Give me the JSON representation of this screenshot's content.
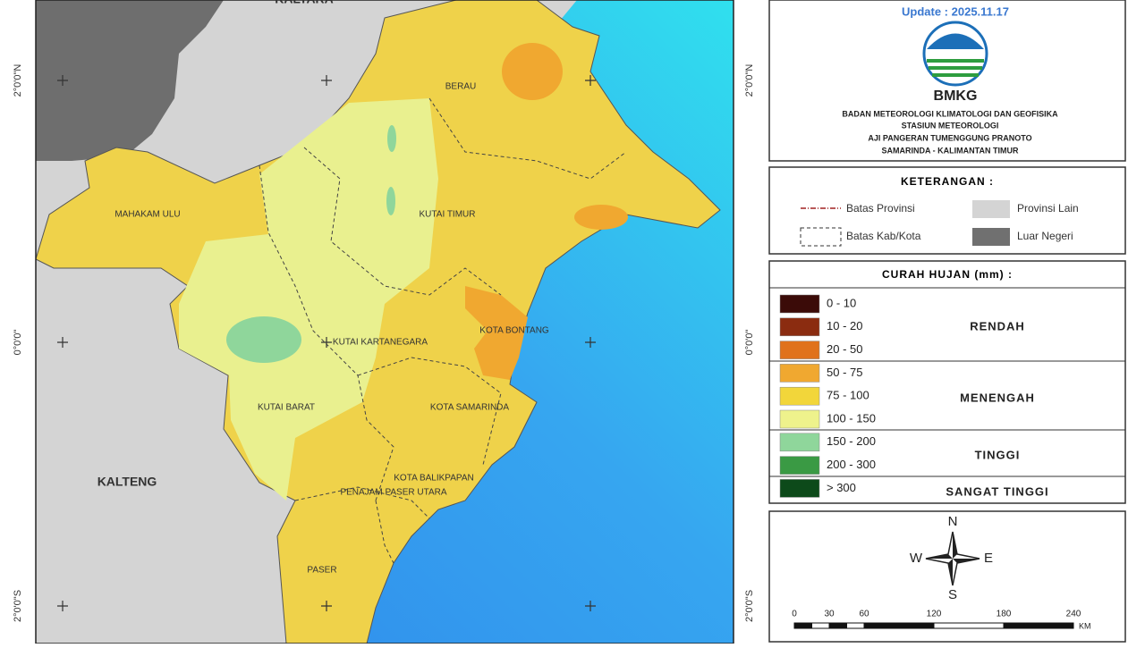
{
  "header": {
    "update": "Update : 2025.11.17",
    "logo_text": "BMKG",
    "agency": [
      "BADAN METEOROLOGI KLIMATOLOGI DAN GEOFISIKA",
      "STASIUN METEOROLOGI",
      "AJI PANGERAN TUMENGGUNG PRANOTO",
      "SAMARINDA - KALIMANTAN TIMUR"
    ]
  },
  "map": {
    "labels": [
      "KALTARA",
      "BERAU",
      "MAHAKAM ULU",
      "KUTAI TIMUR",
      "KUTAI KARTANEGARA",
      "KOTA BONTANG",
      "KUTAI BARAT",
      "KOTA SAMARINDA",
      "KALTENG",
      "KOTA BALIKPAPAN",
      "PENAJAM PASER UTARA",
      "PASER"
    ],
    "lat_labels": [
      "2°0'0\"N",
      "0°0'0\"",
      "2°0'0\"S"
    ]
  },
  "keterangan": {
    "title": "KETERANGAN :",
    "items": [
      {
        "label": "Batas Provinsi"
      },
      {
        "label": "Provinsi Lain",
        "color": "#d4d4d4"
      },
      {
        "label": "Batas Kab/Kota"
      },
      {
        "label": "Luar Negeri",
        "color": "#707070"
      }
    ]
  },
  "rainfall": {
    "title": "CURAH HUJAN (mm) :",
    "classes": [
      {
        "label": "0 - 10",
        "color": "#3b0b08"
      },
      {
        "label": "10 - 20",
        "color": "#8b2c10"
      },
      {
        "label": "20 - 50",
        "color": "#e0721c"
      },
      {
        "label": "50 - 75",
        "color": "#f0a830"
      },
      {
        "label": "75 - 100",
        "color": "#f2d63a"
      },
      {
        "label": "100 - 150",
        "color": "#eef28c"
      },
      {
        "label": "150 - 200",
        "color": "#8fd69b"
      },
      {
        "label": "200 - 300",
        "color": "#3a9a44"
      },
      {
        "label": "> 300",
        "color": "#0d4a1a"
      }
    ],
    "groups": [
      "RENDAH",
      "MENENGAH",
      "TINGGI",
      "SANGAT TINGGI"
    ]
  },
  "compass": [
    "N",
    "W",
    "E",
    "S"
  ],
  "scale": {
    "ticks": [
      "0",
      "30",
      "60",
      "120",
      "180",
      "240"
    ],
    "unit": "KM"
  }
}
